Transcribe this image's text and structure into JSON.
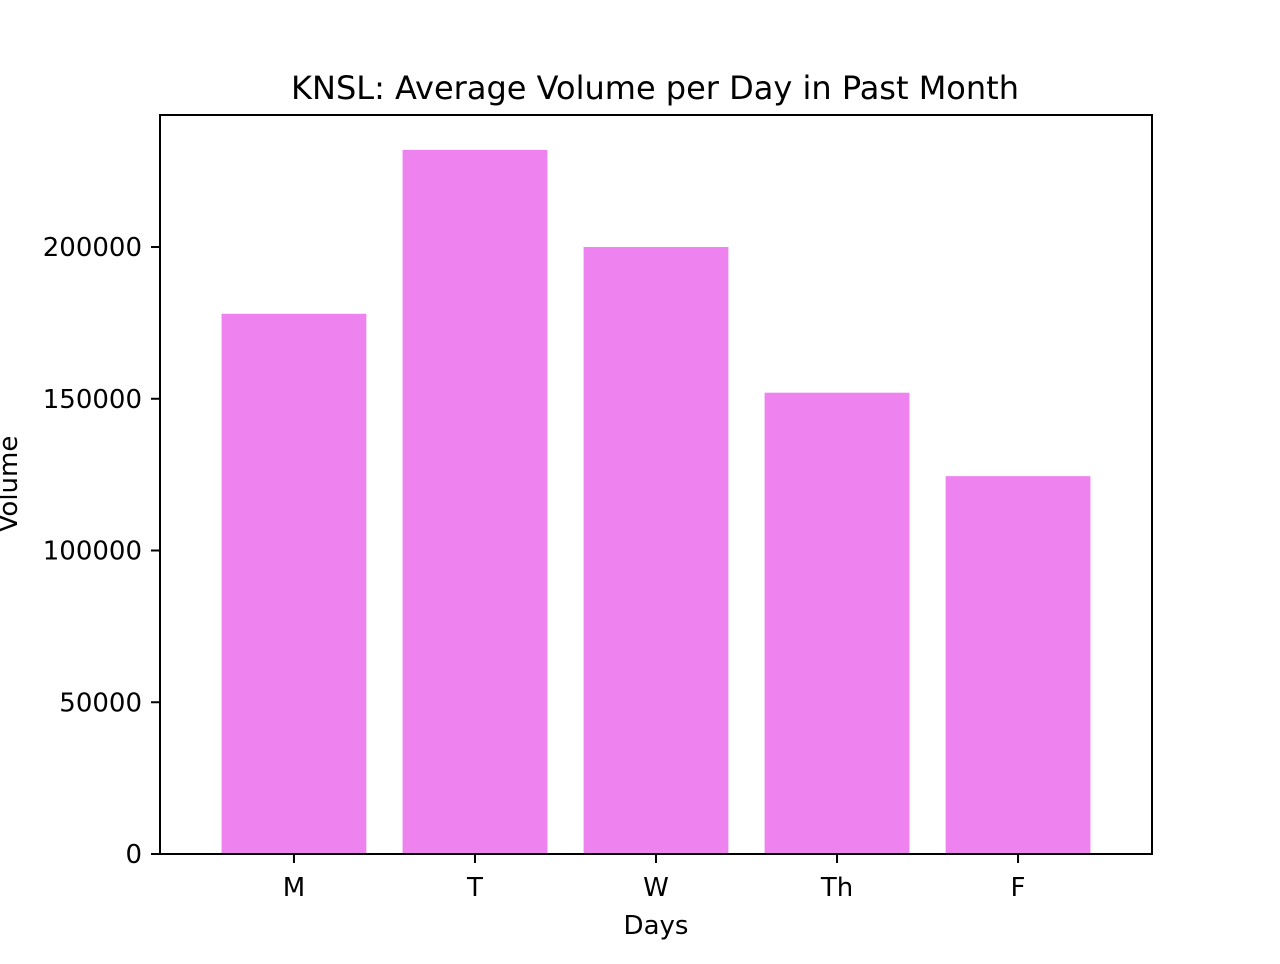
{
  "chart_data": {
    "type": "bar",
    "title": "KNSL: Average Volume per Day in Past Month",
    "xlabel": "Days",
    "ylabel": "Volume",
    "categories": [
      "M",
      "T",
      "W",
      "Th",
      "F"
    ],
    "values": [
      178000,
      232000,
      200000,
      152000,
      124500
    ],
    "ylim": [
      0,
      243500
    ],
    "yticks": [
      0,
      50000,
      100000,
      150000,
      200000
    ],
    "ytick_labels": [
      "0",
      "50000",
      "100000",
      "150000",
      "200000"
    ],
    "grid": false,
    "legend": "none",
    "colors": {
      "bar": "#ee82ee",
      "axes": "#000000",
      "background": "#ffffff"
    }
  }
}
